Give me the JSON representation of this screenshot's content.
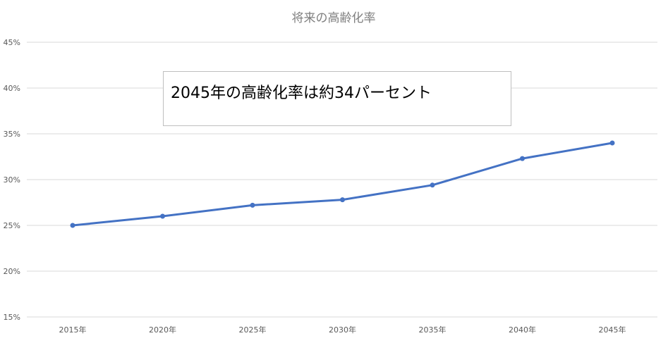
{
  "chart_data": {
    "type": "line",
    "title": "将来の高齢化率",
    "categories": [
      "2015年",
      "2020年",
      "2025年",
      "2030年",
      "2035年",
      "2040年",
      "2045年"
    ],
    "series": [
      {
        "values": [
          25.0,
          26.0,
          27.2,
          27.8,
          29.4,
          32.3,
          34.0
        ],
        "color": "#4472c4"
      }
    ],
    "ylim": [
      15,
      45
    ],
    "yticks": [
      15,
      20,
      25,
      30,
      35,
      40,
      45
    ],
    "ytick_labels": [
      "15%",
      "20%",
      "25%",
      "30%",
      "35%",
      "40%",
      "45%"
    ],
    "grid": true,
    "legend": "none",
    "annotation": "2045年の高齢化率は約34パーセント"
  }
}
